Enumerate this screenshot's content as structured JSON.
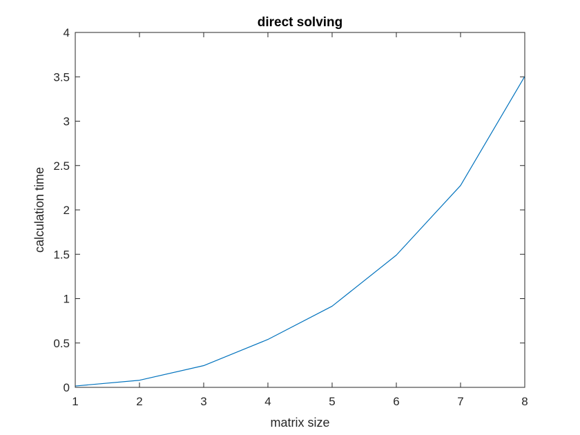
{
  "chart_data": {
    "type": "line",
    "title": "direct solving",
    "xlabel": "matrix size",
    "ylabel": "calculation time",
    "xlim": [
      1,
      8
    ],
    "ylim": [
      0,
      4
    ],
    "xticks": [
      "1",
      "2",
      "3",
      "4",
      "5",
      "6",
      "7",
      "8"
    ],
    "yticks": [
      "0",
      "0.5",
      "1",
      "1.5",
      "2",
      "2.5",
      "3",
      "3.5",
      "4"
    ],
    "grid": false,
    "series": [
      {
        "color": "#0072BD",
        "x": [
          1,
          2,
          3,
          4,
          5,
          6,
          7,
          8
        ],
        "y": [
          0.015,
          0.08,
          0.245,
          0.54,
          0.915,
          1.49,
          2.275,
          3.505
        ]
      }
    ]
  }
}
